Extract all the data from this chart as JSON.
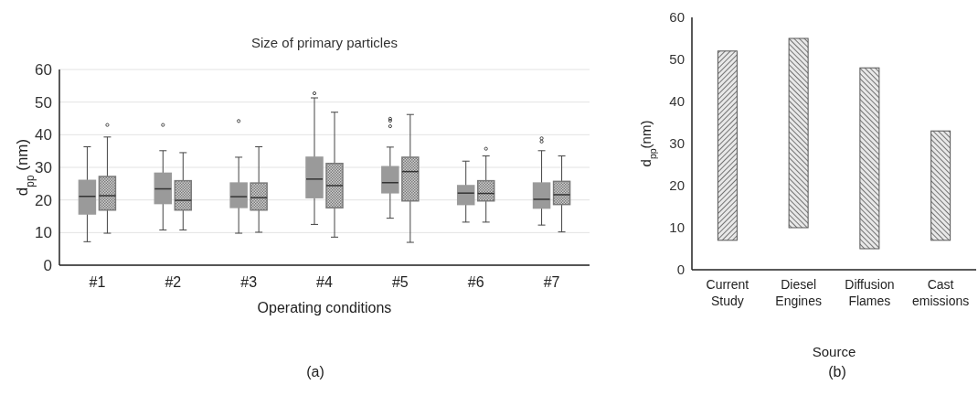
{
  "chart_data": [
    {
      "type": "box",
      "title": "Size of primary particles",
      "xlabel": "Operating conditions",
      "ylabel": "d$_{pp}$ (nm)",
      "annotations": [
        "(a)"
      ],
      "categories": [
        "#1",
        "#2",
        "#3",
        "#4",
        "#5",
        "#6",
        "#7"
      ],
      "ylim": [
        0,
        60
      ],
      "yticks": [
        0,
        10,
        20,
        30,
        40,
        50,
        60
      ],
      "grid": "y",
      "series": [
        {
          "color": "#9a9a9a",
          "boxes": [
            {
              "low": 7.2,
              "q1": 15.7,
              "median": 21.1,
              "q3": 26,
              "high": 36.3
            },
            {
              "low": 10.8,
              "q1": 18.9,
              "median": 23.4,
              "q3": 28.2,
              "high": 35.1,
              "outliers": [
                43
              ]
            },
            {
              "low": 9.8,
              "q1": 17.7,
              "median": 21,
              "q3": 25.2,
              "high": 33.1,
              "outliers": [
                44.2
              ]
            },
            {
              "low": 12.5,
              "q1": 20.7,
              "median": 26.4,
              "q3": 33.1,
              "high": 51.3,
              "outliers": [
                52.7
              ]
            },
            {
              "low": 14.4,
              "q1": 22.2,
              "median": 25.3,
              "q3": 30.2,
              "high": 36.2,
              "outliers": [
                44.9,
                44.3,
                42.6
              ]
            },
            {
              "low": 13.2,
              "q1": 18.6,
              "median": 22.1,
              "q3": 24.4,
              "high": 31.9
            },
            {
              "low": 12.3,
              "q1": 17.5,
              "median": 20.2,
              "q3": 25.2,
              "high": 35.1,
              "outliers": [
                38.9,
                37.9
              ]
            }
          ]
        },
        {
          "color": "#7a7a7a",
          "boxes": [
            {
              "low": 9.8,
              "q1": 16.9,
              "median": 21.3,
              "q3": 27.2,
              "high": 39.3,
              "outliers": [
                43
              ]
            },
            {
              "low": 10.8,
              "q1": 16.9,
              "median": 19.9,
              "q3": 25.9,
              "high": 34.5
            },
            {
              "low": 10.1,
              "q1": 16.9,
              "median": 20.7,
              "q3": 25.2,
              "high": 36.3
            },
            {
              "low": 8.6,
              "q1": 17.6,
              "median": 24.4,
              "q3": 31.2,
              "high": 46.9
            },
            {
              "low": 7,
              "q1": 19.7,
              "median": 28.7,
              "q3": 33.1,
              "high": 46.2
            },
            {
              "low": 13.2,
              "q1": 19.7,
              "median": 22,
              "q3": 25.9,
              "high": 33.5,
              "outliers": [
                35.7
              ]
            },
            {
              "low": 10.2,
              "q1": 18.6,
              "median": 21.6,
              "q3": 25.7,
              "high": 33.5
            }
          ]
        }
      ]
    },
    {
      "type": "bar",
      "xlabel": "Source",
      "ylabel": "d$_{pp}$(nm)",
      "annotations": [
        "(b)"
      ],
      "categories": [
        "Current Study",
        "Diesel Engines",
        "Diffusion Flames",
        "Cast emissions"
      ],
      "base": [
        7,
        10,
        5,
        7
      ],
      "values": [
        45,
        45,
        43,
        26
      ],
      "color": "#555555",
      "ylim": [
        0,
        60
      ],
      "yticks": [
        0,
        10,
        20,
        30,
        40,
        50,
        60
      ],
      "grid": false
    }
  ]
}
